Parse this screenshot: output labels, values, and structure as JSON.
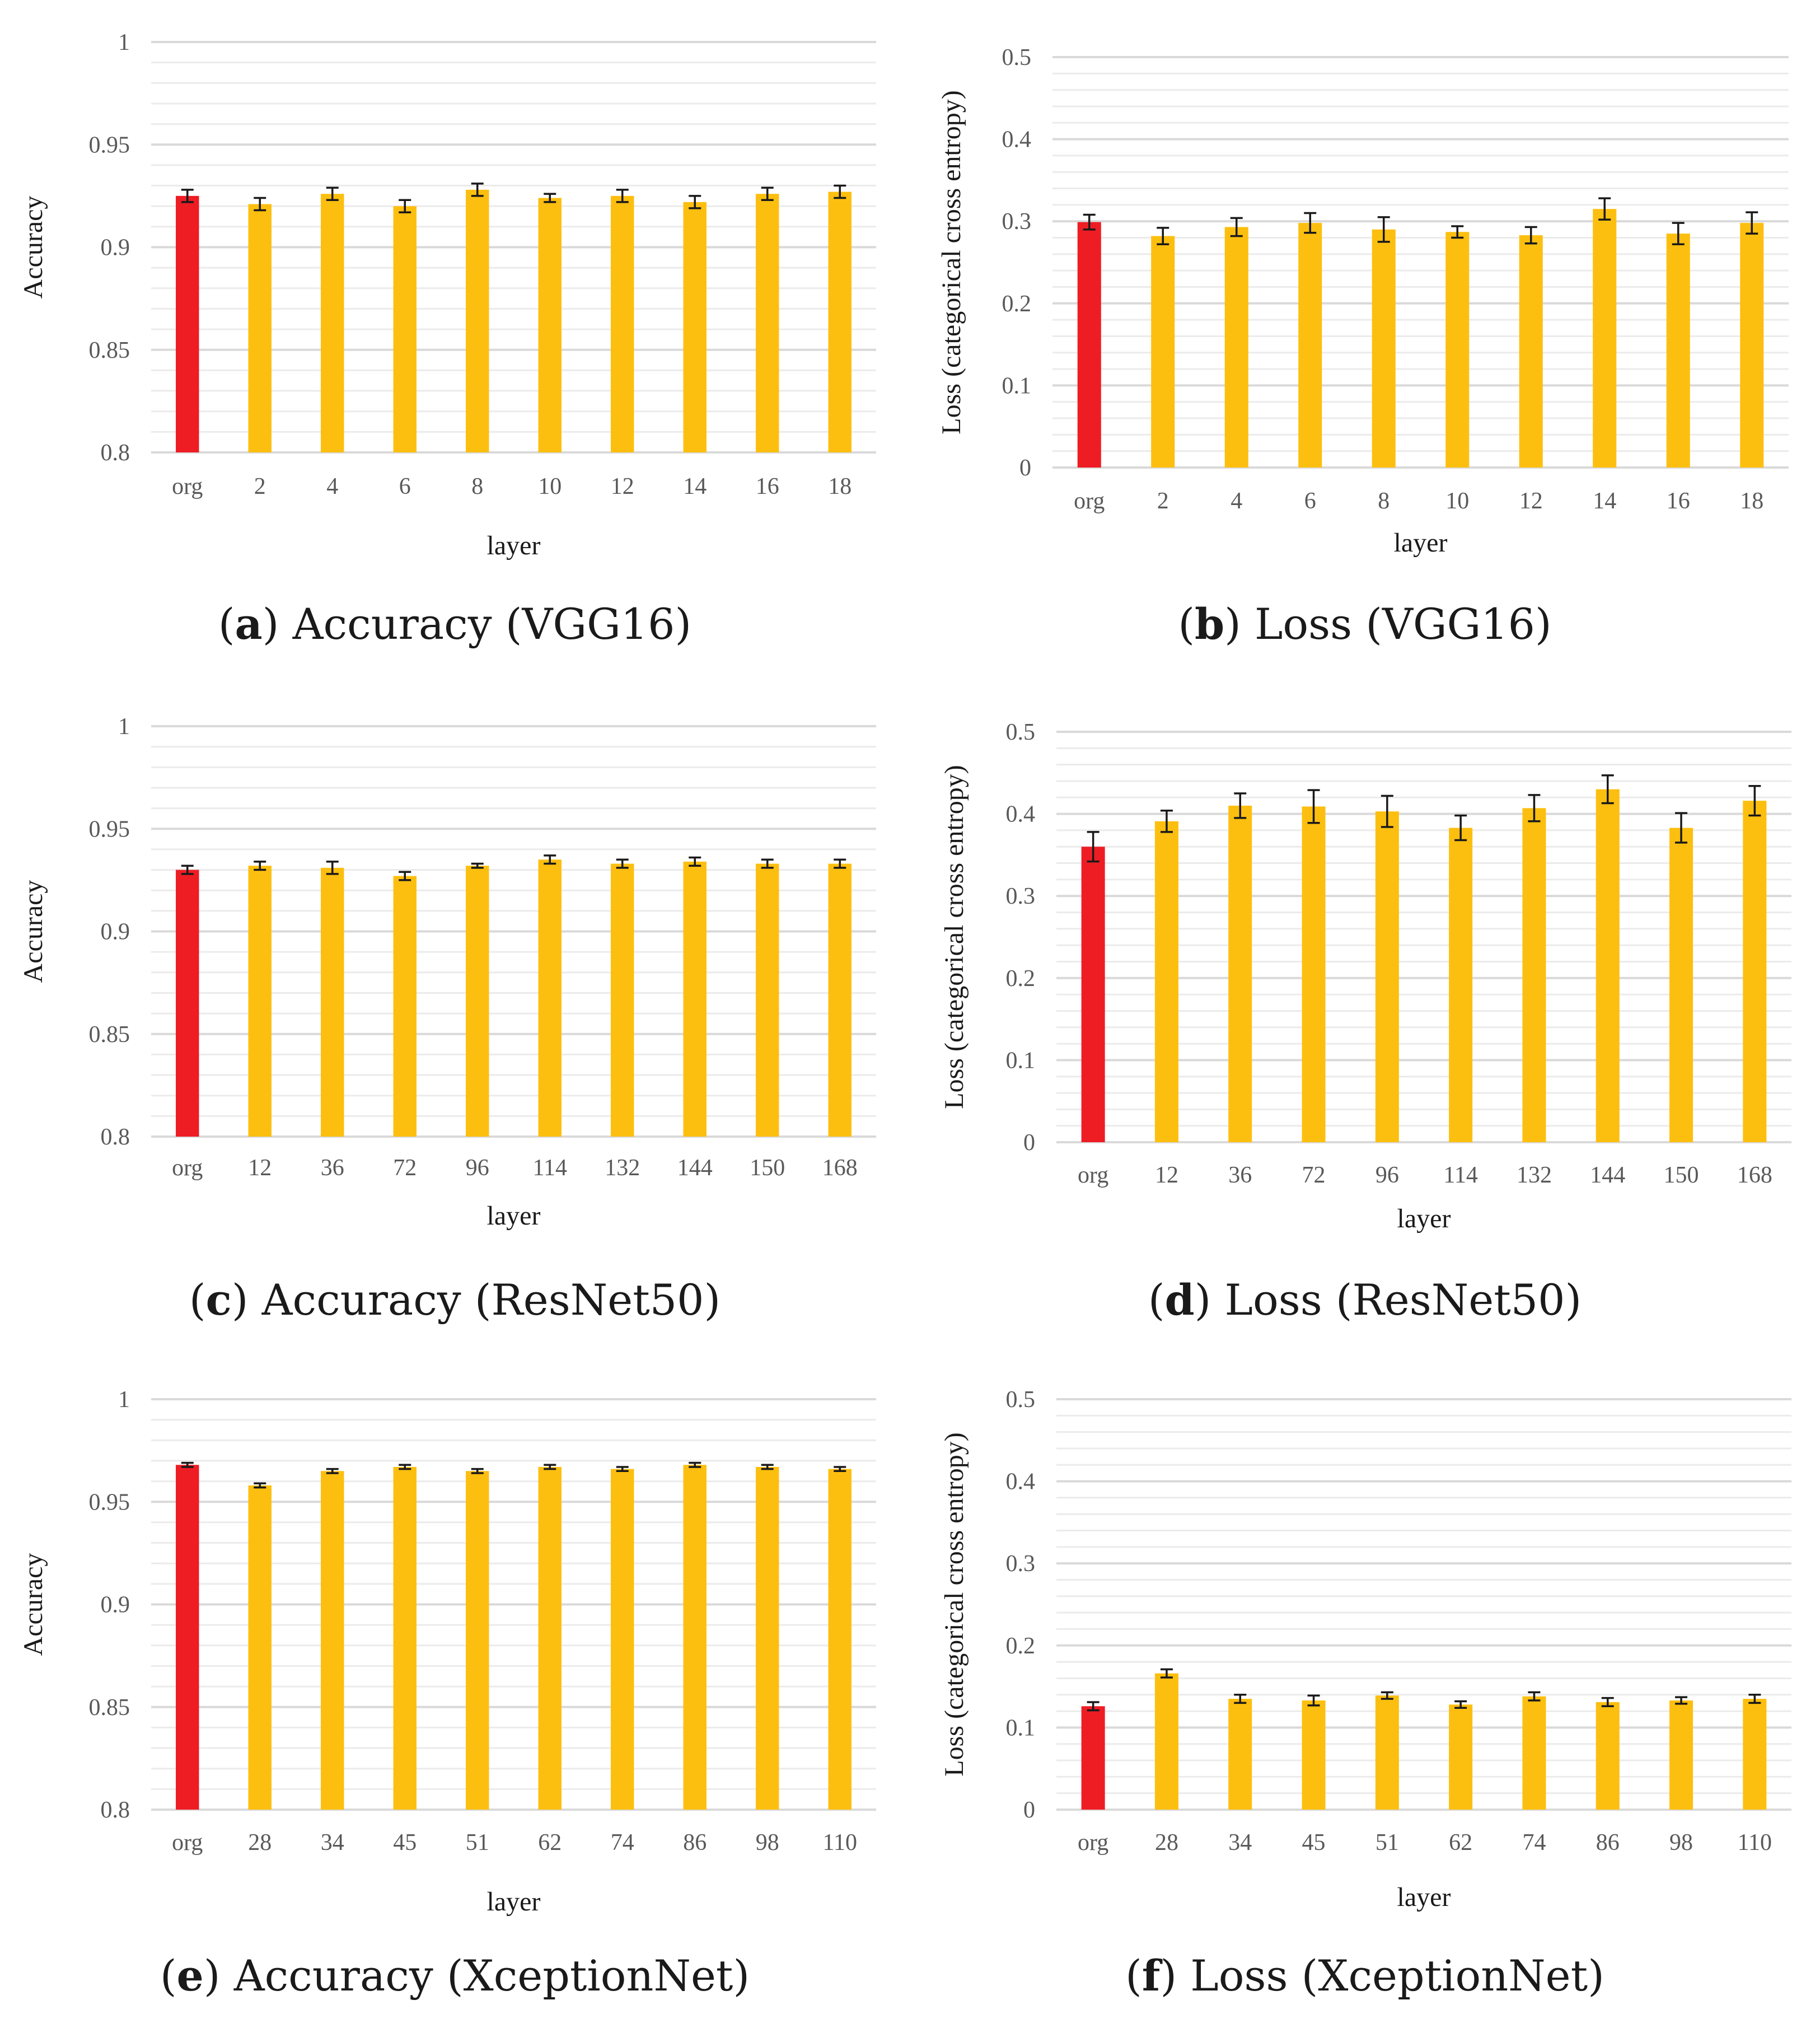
{
  "colors": {
    "baseline": "#ee1d24",
    "layer": "#fdbf0f",
    "grid": "#d9d9d9",
    "error": "#1a1a1a"
  },
  "chart_data": [
    {
      "id": "a",
      "type": "bar",
      "caption_letter": "a",
      "caption_text": "Accuracy (VGG16)",
      "xlabel": "layer",
      "ylabel": "Accuracy",
      "ylim": [
        0.8,
        1
      ],
      "yticks": [
        "0.8",
        "0.85",
        "0.9",
        "0.95",
        "1"
      ],
      "categories": [
        "org",
        "2",
        "4",
        "6",
        "8",
        "10",
        "12",
        "14",
        "16",
        "18"
      ],
      "values": [
        0.925,
        0.921,
        0.926,
        0.92,
        0.928,
        0.924,
        0.925,
        0.922,
        0.926,
        0.927
      ],
      "errors": [
        0.003,
        0.003,
        0.003,
        0.003,
        0.003,
        0.002,
        0.003,
        0.003,
        0.003,
        0.003
      ]
    },
    {
      "id": "b",
      "type": "bar",
      "caption_letter": "b",
      "caption_text": "Loss (VGG16)",
      "xlabel": "layer",
      "ylabel": "Loss (categorical cross entropy)",
      "ylim": [
        0,
        0.5
      ],
      "yticks": [
        "0",
        "0.1",
        "0.2",
        "0.3",
        "0.4",
        "0.5"
      ],
      "categories": [
        "org",
        "2",
        "4",
        "6",
        "8",
        "10",
        "12",
        "14",
        "16",
        "18"
      ],
      "values": [
        0.299,
        0.282,
        0.293,
        0.298,
        0.29,
        0.287,
        0.283,
        0.315,
        0.285,
        0.298
      ],
      "errors": [
        0.009,
        0.01,
        0.011,
        0.012,
        0.015,
        0.007,
        0.01,
        0.013,
        0.013,
        0.013
      ]
    },
    {
      "id": "c",
      "type": "bar",
      "caption_letter": "c",
      "caption_text": "Accuracy (ResNet50)",
      "xlabel": "layer",
      "ylabel": "Accuracy",
      "ylim": [
        0.8,
        1
      ],
      "yticks": [
        "0.8",
        "0.85",
        "0.9",
        "0.95",
        "1"
      ],
      "categories": [
        "org",
        "12",
        "36",
        "72",
        "96",
        "114",
        "132",
        "144",
        "150",
        "168"
      ],
      "values": [
        0.93,
        0.932,
        0.931,
        0.927,
        0.932,
        0.935,
        0.933,
        0.934,
        0.933,
        0.933
      ],
      "errors": [
        0.002,
        0.002,
        0.003,
        0.002,
        0.001,
        0.002,
        0.002,
        0.002,
        0.002,
        0.002
      ]
    },
    {
      "id": "d",
      "type": "bar",
      "caption_letter": "d",
      "caption_text": "Loss (ResNet50)",
      "xlabel": "layer",
      "ylabel": "Loss (categorical cross entropy)",
      "ylim": [
        0,
        0.5
      ],
      "yticks": [
        "0",
        "0.1",
        "0.2",
        "0.3",
        "0.4",
        "0.5"
      ],
      "categories": [
        "org",
        "12",
        "36",
        "72",
        "96",
        "114",
        "132",
        "144",
        "150",
        "168"
      ],
      "values": [
        0.36,
        0.391,
        0.41,
        0.409,
        0.403,
        0.383,
        0.407,
        0.43,
        0.383,
        0.416
      ],
      "errors": [
        0.018,
        0.013,
        0.015,
        0.02,
        0.019,
        0.015,
        0.016,
        0.017,
        0.018,
        0.018
      ]
    },
    {
      "id": "e",
      "type": "bar",
      "caption_letter": "e",
      "caption_text": "Accuracy (XceptionNet)",
      "xlabel": "layer",
      "ylabel": "Accuracy",
      "ylim": [
        0.8,
        1
      ],
      "yticks": [
        "0.8",
        "0.85",
        "0.9",
        "0.95",
        "1"
      ],
      "categories": [
        "org",
        "28",
        "34",
        "45",
        "51",
        "62",
        "74",
        "86",
        "98",
        "110"
      ],
      "values": [
        0.968,
        0.958,
        0.965,
        0.967,
        0.965,
        0.967,
        0.966,
        0.968,
        0.967,
        0.966
      ],
      "errors": [
        0.001,
        0.001,
        0.001,
        0.001,
        0.001,
        0.001,
        0.001,
        0.001,
        0.001,
        0.001
      ]
    },
    {
      "id": "f",
      "type": "bar",
      "caption_letter": "f",
      "caption_text": "Loss (XceptionNet)",
      "xlabel": "layer",
      "ylabel": "Loss (categorical cross entropy)",
      "ylim": [
        0,
        0.5
      ],
      "yticks": [
        "0",
        "0.1",
        "0.2",
        "0.3",
        "0.4",
        "0.5"
      ],
      "categories": [
        "org",
        "28",
        "34",
        "45",
        "51",
        "62",
        "74",
        "86",
        "98",
        "110"
      ],
      "values": [
        0.126,
        0.166,
        0.135,
        0.133,
        0.139,
        0.128,
        0.138,
        0.131,
        0.133,
        0.135
      ],
      "errors": [
        0.005,
        0.005,
        0.005,
        0.006,
        0.004,
        0.004,
        0.005,
        0.005,
        0.004,
        0.005
      ]
    }
  ]
}
